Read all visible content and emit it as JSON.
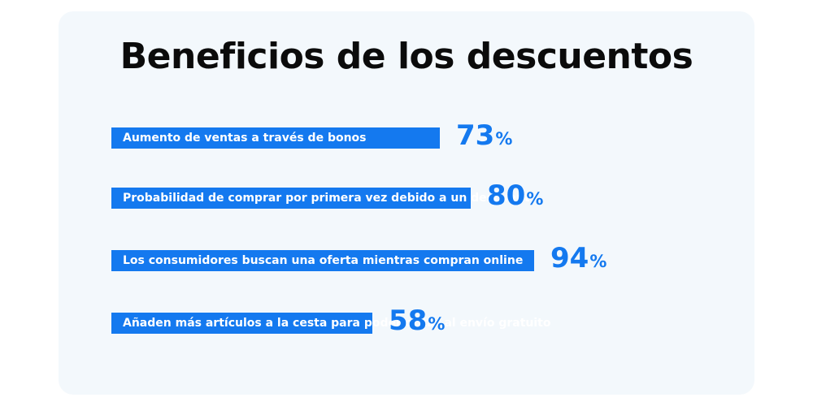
{
  "chart_data": {
    "type": "bar",
    "orientation": "horizontal",
    "title": "Beneficios de los descuentos",
    "unit": "%",
    "categories": [
      "Aumento de ventas a través de bonos",
      "Probabilidad de comprar por primera vez debido a un descuento",
      "Los consumidores buscan una oferta mientras compran online",
      "Añaden más artículos a la cesta para poder optar al envío gratuito"
    ],
    "values": [
      73,
      80,
      94,
      58
    ],
    "xlim": [
      0,
      100
    ],
    "grid": false,
    "legend": "none",
    "colors": {
      "bar": "#1479ef",
      "label": "#1479ef",
      "background": "#f3f8fc"
    }
  }
}
